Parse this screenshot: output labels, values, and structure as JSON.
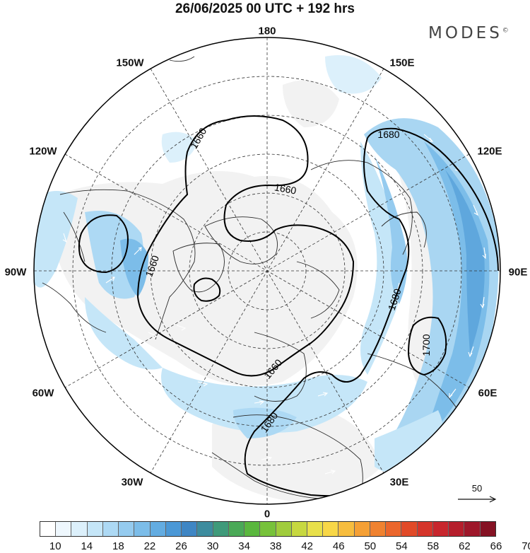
{
  "title": "26/06/2025  00 UTC  + 192 hrs",
  "brand": "MODES",
  "brand_mark": "©",
  "longitude_labels": {
    "top": "180",
    "bottom": "0",
    "left": "90W",
    "right": "90E",
    "upper_left_1": "150W",
    "upper_left_2": "120W",
    "upper_right_1": "150E",
    "upper_right_2": "120E",
    "lower_left_1": "60W",
    "lower_left_2": "30W",
    "lower_right_1": "60E",
    "lower_right_2": "30E"
  },
  "contour_labels": {
    "c1": "1660",
    "c2": "1680",
    "c3": "1660",
    "c4": "1660",
    "c5": "1680",
    "c6": "1660",
    "c7": "1680",
    "c8": "1700"
  },
  "vector_reference": "50",
  "colorbar": {
    "colors": [
      "#ffffff",
      "#eef7fd",
      "#dcf0fb",
      "#c5e6f8",
      "#add9f4",
      "#95cbef",
      "#7cbde9",
      "#63ace1",
      "#4b98d6",
      "#3f86c4",
      "#3d8c9e",
      "#3f9a7a",
      "#4aa957",
      "#5ab73e",
      "#77c23a",
      "#a0cc3c",
      "#c7d840",
      "#e8e04a",
      "#f8d747",
      "#f7bd3e",
      "#f5a035",
      "#f08230",
      "#eb662c",
      "#e14a28",
      "#d5352b",
      "#c8262d",
      "#b51e2c",
      "#9e172a",
      "#851224"
    ],
    "tick_labels": [
      "10",
      "14",
      "18",
      "22",
      "26",
      "30",
      "34",
      "38",
      "42",
      "46",
      "50",
      "54",
      "58",
      "62",
      "66",
      "70"
    ]
  }
}
